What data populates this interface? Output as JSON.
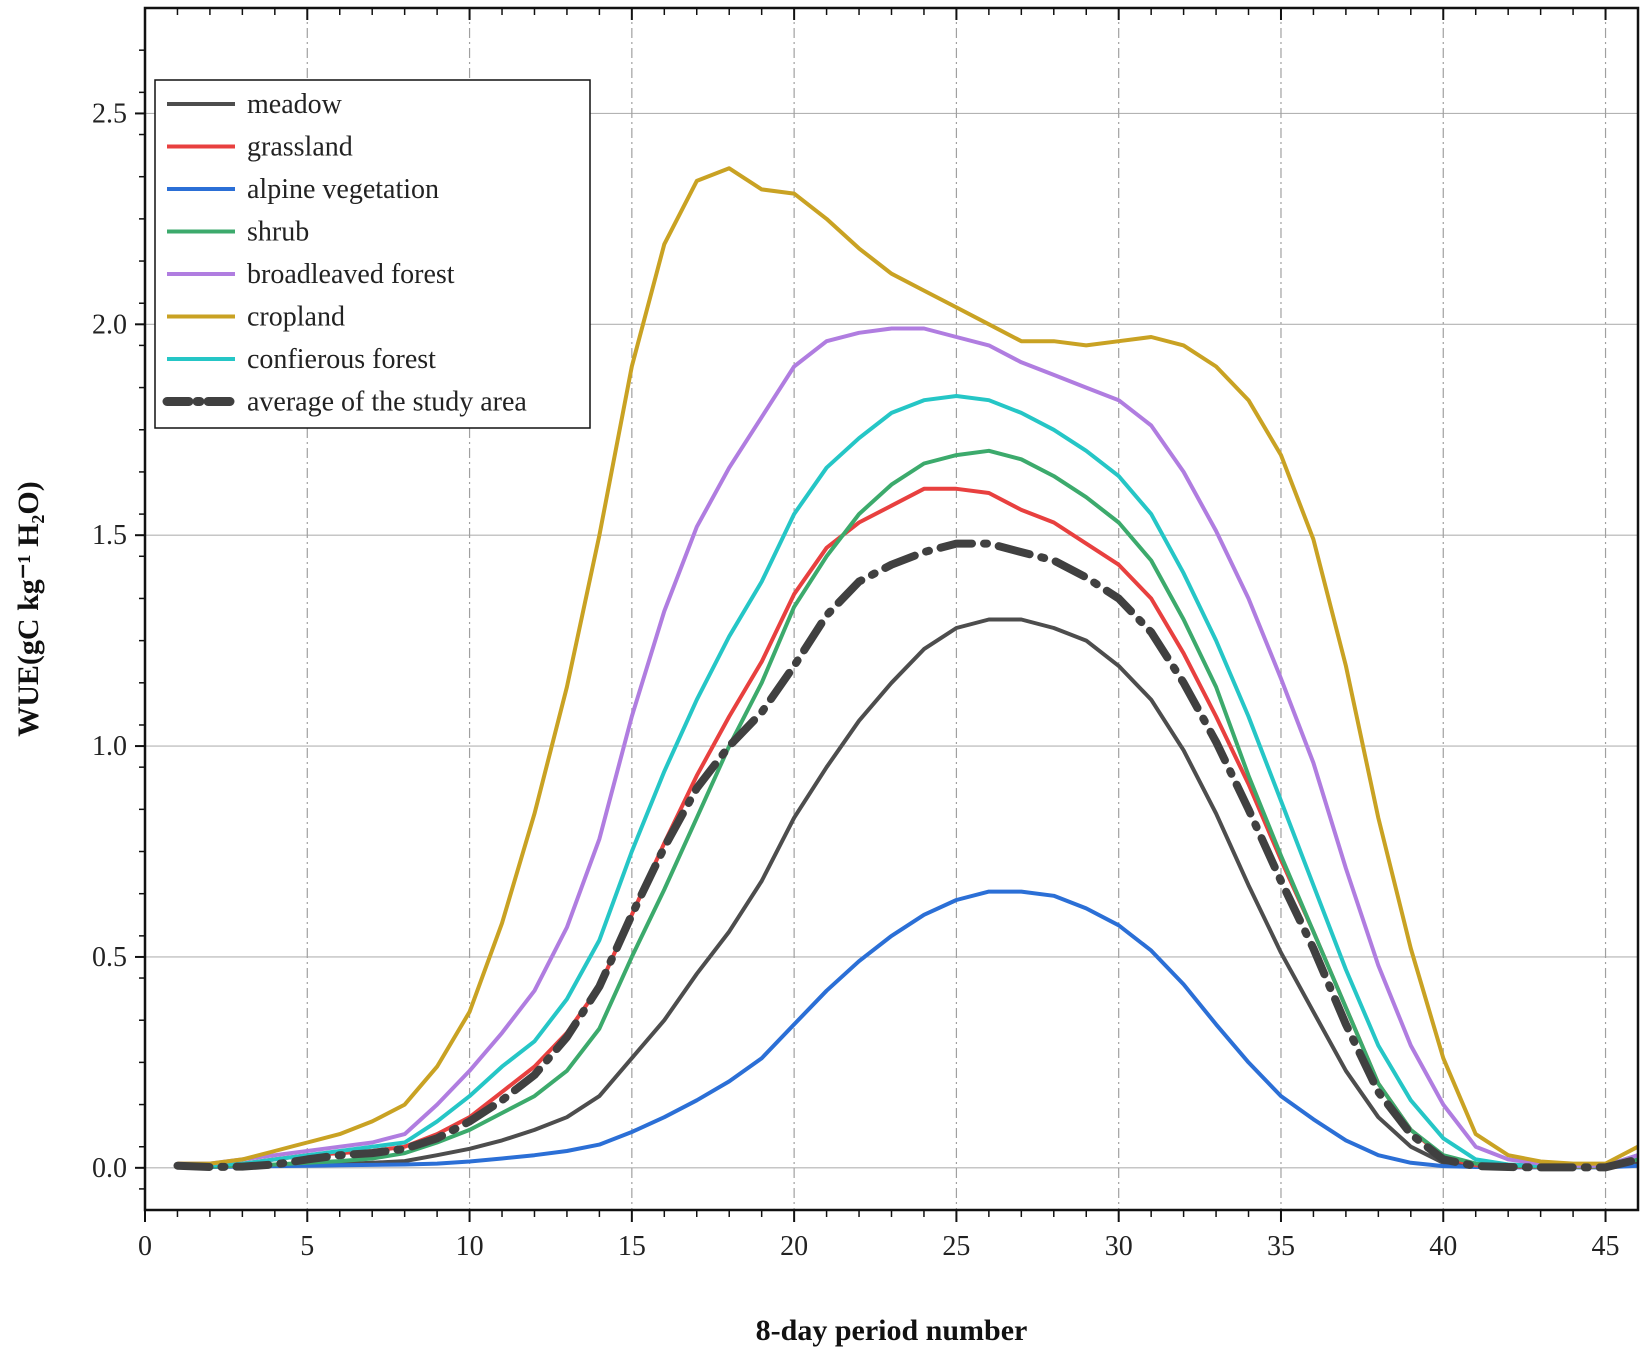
{
  "chart_data": {
    "type": "line",
    "title": "",
    "xlabel": "8-day period number",
    "ylabel": "WUE(gC kg⁻¹ H₂O)",
    "xlim": [
      0,
      46
    ],
    "ylim": [
      -0.1,
      2.75
    ],
    "x_ticks": [
      "0",
      "5",
      "10",
      "15",
      "20",
      "25",
      "30",
      "35",
      "40",
      "45"
    ],
    "y_ticks": [
      "0.0",
      "0.5",
      "1.0",
      "1.5",
      "2.0",
      "2.5"
    ],
    "grid": true,
    "legend_position": "top-left",
    "x": [
      1,
      2,
      3,
      4,
      5,
      6,
      7,
      8,
      9,
      10,
      11,
      12,
      13,
      14,
      15,
      16,
      17,
      18,
      19,
      20,
      21,
      22,
      23,
      24,
      25,
      26,
      27,
      28,
      29,
      30,
      31,
      32,
      33,
      34,
      35,
      36,
      37,
      38,
      39,
      40,
      41,
      42,
      43,
      44,
      45,
      46
    ],
    "series": [
      {
        "name": "meadow",
        "color": "#4d4d4d",
        "style": "solid",
        "values": [
          0.005,
          0.003,
          0.004,
          0.005,
          0.007,
          0.009,
          0.012,
          0.016,
          0.03,
          0.045,
          0.065,
          0.09,
          0.12,
          0.17,
          0.26,
          0.35,
          0.46,
          0.56,
          0.68,
          0.83,
          0.95,
          1.06,
          1.15,
          1.23,
          1.28,
          1.3,
          1.3,
          1.28,
          1.25,
          1.19,
          1.11,
          0.99,
          0.84,
          0.67,
          0.51,
          0.37,
          0.23,
          0.12,
          0.05,
          0.012,
          0.004,
          0.002,
          0.002,
          0.002,
          0.002,
          0.01
        ]
      },
      {
        "name": "grassland",
        "color": "#e8403f",
        "style": "solid",
        "values": [
          0.01,
          0.005,
          0.01,
          0.02,
          0.03,
          0.035,
          0.04,
          0.05,
          0.08,
          0.12,
          0.18,
          0.24,
          0.32,
          0.43,
          0.6,
          0.77,
          0.93,
          1.07,
          1.2,
          1.36,
          1.47,
          1.53,
          1.57,
          1.61,
          1.61,
          1.6,
          1.56,
          1.53,
          1.48,
          1.43,
          1.35,
          1.22,
          1.07,
          0.91,
          0.73,
          0.56,
          0.38,
          0.2,
          0.09,
          0.025,
          0.006,
          0.003,
          0.002,
          0.002,
          0.002,
          0.02
        ]
      },
      {
        "name": "alpine vegetation",
        "color": "#2b6fd6",
        "style": "solid",
        "values": [
          0.002,
          0.002,
          0.003,
          0.004,
          0.005,
          0.006,
          0.007,
          0.008,
          0.01,
          0.015,
          0.022,
          0.03,
          0.04,
          0.055,
          0.085,
          0.12,
          0.16,
          0.205,
          0.26,
          0.34,
          0.42,
          0.49,
          0.55,
          0.6,
          0.635,
          0.655,
          0.655,
          0.645,
          0.615,
          0.575,
          0.515,
          0.435,
          0.34,
          0.25,
          0.17,
          0.115,
          0.065,
          0.03,
          0.012,
          0.004,
          0.002,
          0.001,
          0.001,
          0.001,
          0.001,
          0.005
        ]
      },
      {
        "name": "shrub",
        "color": "#3caa6c",
        "style": "solid",
        "values": [
          0.005,
          0.003,
          0.005,
          0.008,
          0.012,
          0.016,
          0.022,
          0.035,
          0.06,
          0.09,
          0.13,
          0.17,
          0.23,
          0.33,
          0.5,
          0.66,
          0.83,
          1.0,
          1.15,
          1.33,
          1.45,
          1.55,
          1.62,
          1.67,
          1.69,
          1.7,
          1.68,
          1.64,
          1.59,
          1.53,
          1.44,
          1.3,
          1.14,
          0.93,
          0.74,
          0.56,
          0.38,
          0.2,
          0.09,
          0.03,
          0.01,
          0.005,
          0.003,
          0.003,
          0.003,
          0.02
        ]
      },
      {
        "name": "broadleaved forest",
        "color": "#b07de0",
        "style": "solid",
        "values": [
          0.01,
          0.01,
          0.02,
          0.03,
          0.04,
          0.05,
          0.06,
          0.08,
          0.15,
          0.23,
          0.32,
          0.42,
          0.57,
          0.78,
          1.07,
          1.32,
          1.52,
          1.66,
          1.78,
          1.9,
          1.96,
          1.98,
          1.99,
          1.99,
          1.97,
          1.95,
          1.91,
          1.88,
          1.85,
          1.82,
          1.76,
          1.65,
          1.51,
          1.35,
          1.16,
          0.96,
          0.71,
          0.48,
          0.29,
          0.15,
          0.05,
          0.02,
          0.01,
          0.005,
          0.005,
          0.03
        ]
      },
      {
        "name": "cropland",
        "color": "#c9a223",
        "style": "solid",
        "values": [
          0.01,
          0.01,
          0.02,
          0.04,
          0.06,
          0.08,
          0.11,
          0.15,
          0.24,
          0.37,
          0.58,
          0.84,
          1.14,
          1.5,
          1.9,
          2.19,
          2.34,
          2.37,
          2.32,
          2.31,
          2.25,
          2.18,
          2.12,
          2.08,
          2.04,
          2.0,
          1.96,
          1.96,
          1.95,
          1.96,
          1.97,
          1.95,
          1.9,
          1.82,
          1.69,
          1.49,
          1.19,
          0.83,
          0.52,
          0.26,
          0.08,
          0.03,
          0.015,
          0.01,
          0.01,
          0.05
        ]
      },
      {
        "name": "confierous forest",
        "color": "#25c6c6",
        "style": "solid",
        "values": [
          0.008,
          0.006,
          0.01,
          0.02,
          0.03,
          0.04,
          0.05,
          0.06,
          0.11,
          0.17,
          0.24,
          0.3,
          0.4,
          0.54,
          0.75,
          0.94,
          1.11,
          1.26,
          1.39,
          1.55,
          1.66,
          1.73,
          1.79,
          1.82,
          1.83,
          1.82,
          1.79,
          1.75,
          1.7,
          1.64,
          1.55,
          1.41,
          1.25,
          1.07,
          0.87,
          0.67,
          0.47,
          0.29,
          0.16,
          0.07,
          0.02,
          0.008,
          0.005,
          0.005,
          0.005,
          0.03
        ]
      },
      {
        "name": "average of the study area",
        "color": "#404040",
        "style": "dashdot",
        "values": [
          0.005,
          0.002,
          0.003,
          0.008,
          0.02,
          0.03,
          0.035,
          0.045,
          0.07,
          0.11,
          0.16,
          0.22,
          0.31,
          0.43,
          0.6,
          0.76,
          0.9,
          1.0,
          1.08,
          1.19,
          1.31,
          1.39,
          1.43,
          1.46,
          1.48,
          1.48,
          1.46,
          1.44,
          1.4,
          1.35,
          1.27,
          1.15,
          1.01,
          0.85,
          0.68,
          0.52,
          0.34,
          0.18,
          0.08,
          0.02,
          0.004,
          0.002,
          0.001,
          0.001,
          0.001,
          0.02
        ]
      }
    ]
  }
}
